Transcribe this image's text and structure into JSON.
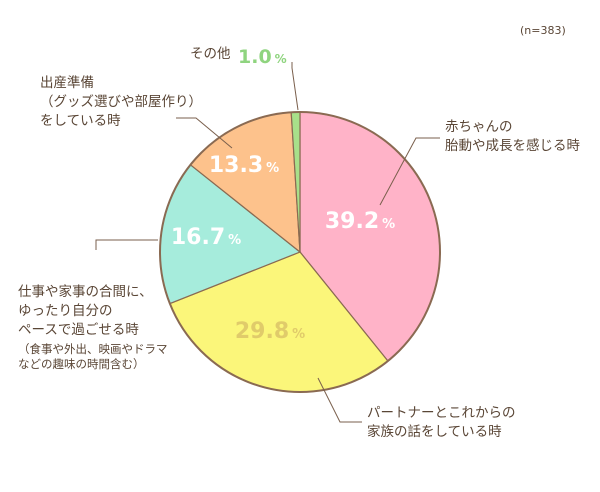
{
  "sample_note": "(n=383)",
  "chart_data": {
    "type": "pie",
    "title": "",
    "sample_size": "n=383",
    "slices": [
      {
        "label_lines": [
          "赤ちゃんの",
          "胎動や成長を感じる時"
        ],
        "value": 39.2,
        "value_text": "39.2",
        "color": "#ffb3c8",
        "value_color": "#ffffff"
      },
      {
        "label_lines": [
          "パートナーとこれからの",
          "家族の話をしている時"
        ],
        "value": 29.8,
        "value_text": "29.8",
        "color": "#fbf67a",
        "value_color": "#e0cb6a"
      },
      {
        "label_lines": [
          "仕事や家事の合間に、",
          "ゆったり自分の",
          "ペースで過ごせる時"
        ],
        "label_sub_lines": [
          "（食事や外出、映画やドラマ",
          "などの趣味の時間含む）"
        ],
        "value": 16.7,
        "value_text": "16.7",
        "color": "#a6ecdc",
        "value_color": "#ffffff"
      },
      {
        "label_lines": [
          "出産準備",
          "（グッズ選びや部屋作り）",
          "をしている時"
        ],
        "value": 13.3,
        "value_text": "13.3",
        "color": "#fdc28c",
        "value_color": "#ffffff"
      },
      {
        "label_lines": [
          "その他"
        ],
        "value": 1.0,
        "value_text": "1.0",
        "color": "#a8e08a",
        "value_color": "#8fd47f"
      }
    ],
    "unit": "%",
    "border_color": "#8a6a52",
    "leader_color": "#7a5f4c"
  }
}
